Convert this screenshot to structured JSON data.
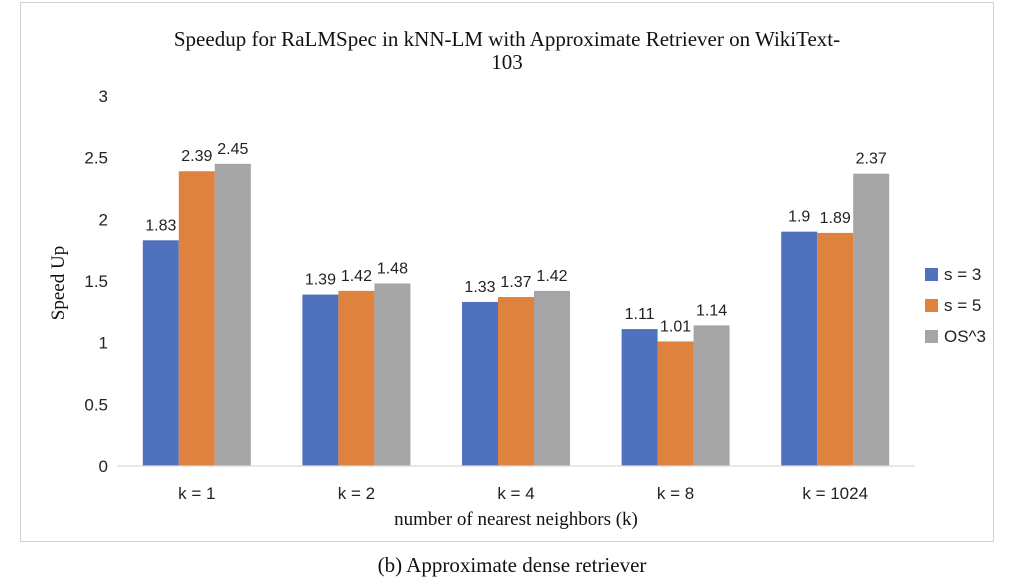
{
  "caption": "(b) Approximate dense retriever",
  "chart_data": {
    "type": "bar",
    "title_lines": [
      "Speedup for RaLMSpec in kNN-LM with Approximate Retriever on WikiText-",
      "103"
    ],
    "xlabel": "number of nearest neighbors (k)",
    "ylabel": "Speed Up",
    "categories": [
      "k = 1",
      "k =  2",
      "k = 4",
      "k = 8",
      "k = 1024"
    ],
    "ylim": [
      0,
      3
    ],
    "yticks": [
      "0",
      "0.5",
      "1",
      "1.5",
      "2",
      "2.5",
      "3"
    ],
    "grid": false,
    "legend_position": "right",
    "series": [
      {
        "name": "s = 3",
        "color": "#4f71be",
        "values": [
          1.83,
          1.39,
          1.33,
          1.11,
          1.9
        ],
        "labels": [
          "1.83",
          "1.39",
          "1.33",
          "1.11",
          "1.9"
        ]
      },
      {
        "name": "s = 5",
        "color": "#e0823f",
        "values": [
          2.39,
          1.42,
          1.37,
          1.01,
          1.89
        ],
        "labels": [
          "2.39",
          "1.42",
          "1.37",
          "1.01",
          "1.89"
        ]
      },
      {
        "name": "OS^3",
        "color": "#a5a5a5",
        "values": [
          2.45,
          1.48,
          1.42,
          1.14,
          2.37
        ],
        "labels": [
          "2.45",
          "1.48",
          "1.42",
          "1.14",
          "2.37"
        ]
      }
    ]
  }
}
